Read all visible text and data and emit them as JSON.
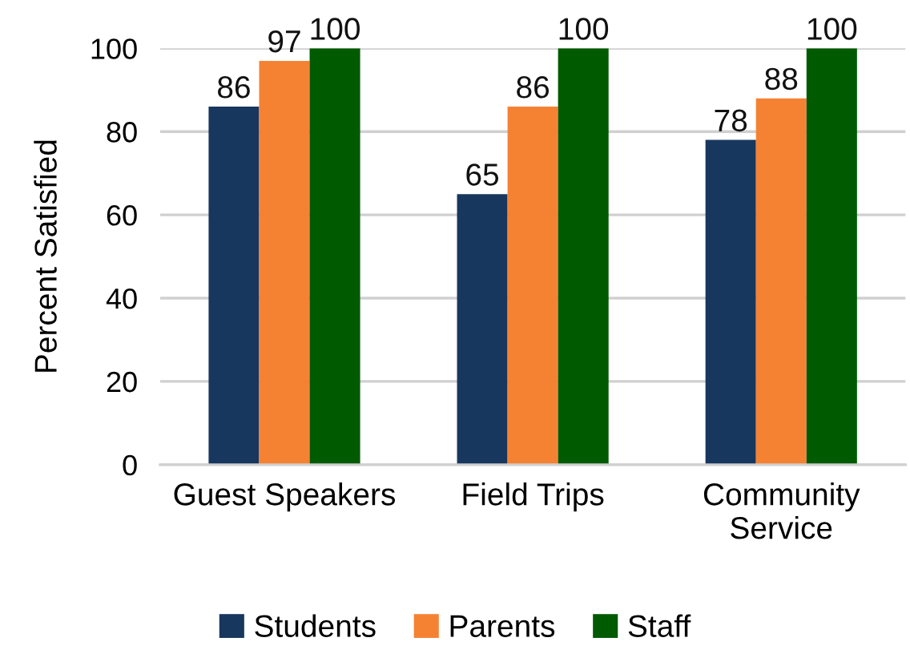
{
  "chart_data": {
    "type": "bar",
    "ylabel": "Percent Satisfied",
    "categories": [
      "Guest Speakers",
      "Field Trips",
      "Community Service"
    ],
    "series": [
      {
        "name": "Students",
        "color": "#17375e",
        "values": [
          86,
          65,
          78
        ]
      },
      {
        "name": "Parents",
        "color": "#f58233",
        "values": [
          97,
          86,
          88
        ]
      },
      {
        "name": "Staff",
        "color": "#005a00",
        "values": [
          100,
          100,
          100
        ]
      }
    ],
    "ylim": [
      0,
      100
    ],
    "yticks": [
      0,
      20,
      40,
      60,
      80,
      100
    ],
    "grid": "y",
    "legend": "bottom",
    "data_labels": true
  }
}
